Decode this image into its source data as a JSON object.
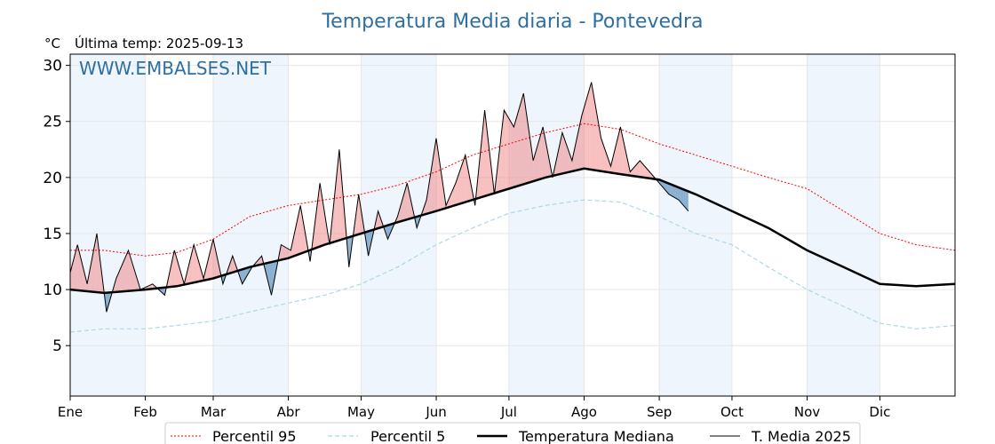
{
  "chart_data": {
    "type": "line",
    "title": "Temperatura Media diaria - Pontevedra",
    "subtitle": "Última temp: 2025-09-13",
    "unit": "°C",
    "watermark": "WWW.EMBALSES.NET",
    "ylim": [
      0.5,
      31
    ],
    "yticks": [
      5,
      10,
      15,
      20,
      25,
      30
    ],
    "x_range_days": [
      1,
      366
    ],
    "month_labels": [
      "Ene",
      "Feb",
      "Mar",
      "Abr",
      "May",
      "Jun",
      "Jul",
      "Ago",
      "Sep",
      "Oct",
      "Nov",
      "Dic"
    ],
    "month_start_days": [
      1,
      32,
      60,
      91,
      121,
      152,
      182,
      213,
      244,
      274,
      305,
      335
    ],
    "shaded_months": [
      "Ene",
      "Mar",
      "May",
      "Jul",
      "Sep",
      "Nov"
    ],
    "grid": true,
    "legend_position": "bottom",
    "colors": {
      "p95": "#ff0000",
      "p5": "#add8e6",
      "median": "#000000",
      "current": "#000000",
      "above_fill": "#f08080",
      "below_fill": "#4682b4",
      "title": "#2e6fa3",
      "month_band": "#eef5fc"
    },
    "series": [
      {
        "name": "Percentil 95",
        "style": "dotted",
        "days": [
          1,
          15,
          32,
          45,
          60,
          75,
          91,
          106,
          121,
          136,
          152,
          167,
          182,
          197,
          213,
          228,
          244,
          259,
          274,
          289,
          305,
          320,
          335,
          350,
          366
        ],
        "values": [
          13.5,
          13.5,
          13.0,
          13.3,
          14.5,
          16.5,
          17.5,
          18.0,
          18.5,
          19.3,
          20.5,
          22.0,
          23.0,
          24.0,
          24.8,
          24.3,
          23.0,
          22.0,
          21.0,
          20.0,
          19.0,
          17.0,
          15.0,
          14.0,
          13.5
        ]
      },
      {
        "name": "Percentil 5",
        "style": "dashed",
        "days": [
          1,
          15,
          32,
          45,
          60,
          75,
          91,
          106,
          121,
          136,
          152,
          167,
          182,
          197,
          213,
          228,
          244,
          259,
          274,
          289,
          305,
          320,
          335,
          350,
          366
        ],
        "values": [
          6.2,
          6.5,
          6.5,
          6.8,
          7.2,
          8.0,
          8.8,
          9.5,
          10.5,
          12.0,
          14.0,
          15.5,
          16.8,
          17.5,
          18.0,
          17.8,
          16.5,
          15.0,
          14.0,
          12.0,
          10.0,
          8.5,
          7.0,
          6.5,
          6.8
        ]
      },
      {
        "name": "Temperatura Mediana",
        "style": "solid-thick",
        "days": [
          1,
          15,
          32,
          45,
          60,
          75,
          91,
          106,
          121,
          136,
          152,
          167,
          182,
          197,
          213,
          228,
          244,
          259,
          274,
          289,
          305,
          320,
          335,
          350,
          366
        ],
        "values": [
          10.0,
          9.7,
          10.0,
          10.3,
          11.0,
          12.0,
          12.8,
          14.0,
          15.0,
          16.0,
          17.0,
          18.0,
          19.0,
          20.0,
          20.8,
          20.3,
          19.8,
          18.5,
          17.0,
          15.5,
          13.5,
          12.0,
          10.5,
          10.3,
          10.5
        ]
      },
      {
        "name": "T. Media 2025",
        "style": "solid-thin",
        "days": [
          1,
          4,
          8,
          12,
          16,
          20,
          25,
          30,
          35,
          40,
          44,
          48,
          52,
          56,
          60,
          64,
          68,
          72,
          76,
          80,
          84,
          88,
          92,
          96,
          100,
          104,
          108,
          112,
          116,
          120,
          124,
          128,
          132,
          136,
          140,
          144,
          148,
          152,
          156,
          160,
          164,
          168,
          172,
          176,
          180,
          184,
          188,
          192,
          196,
          200,
          204,
          208,
          212,
          216,
          220,
          224,
          228,
          232,
          236,
          240,
          244,
          248,
          252,
          256
        ],
        "values": [
          11.5,
          14.0,
          10.5,
          15.0,
          8.0,
          11.0,
          13.5,
          10.0,
          10.5,
          9.5,
          13.5,
          10.5,
          14.0,
          11.0,
          14.5,
          10.5,
          13.0,
          10.5,
          12.0,
          13.0,
          9.5,
          14.0,
          13.5,
          17.5,
          12.5,
          19.5,
          14.0,
          22.5,
          12.0,
          18.5,
          13.0,
          17.0,
          14.5,
          16.5,
          19.5,
          15.5,
          18.0,
          23.5,
          17.5,
          19.5,
          22.0,
          17.5,
          26.0,
          18.5,
          26.0,
          24.5,
          27.5,
          21.5,
          24.5,
          20.0,
          24.0,
          21.5,
          25.5,
          28.5,
          23.5,
          21.0,
          24.5,
          20.5,
          21.5,
          20.5,
          19.5,
          18.5,
          18.0,
          17.0
        ]
      }
    ]
  }
}
